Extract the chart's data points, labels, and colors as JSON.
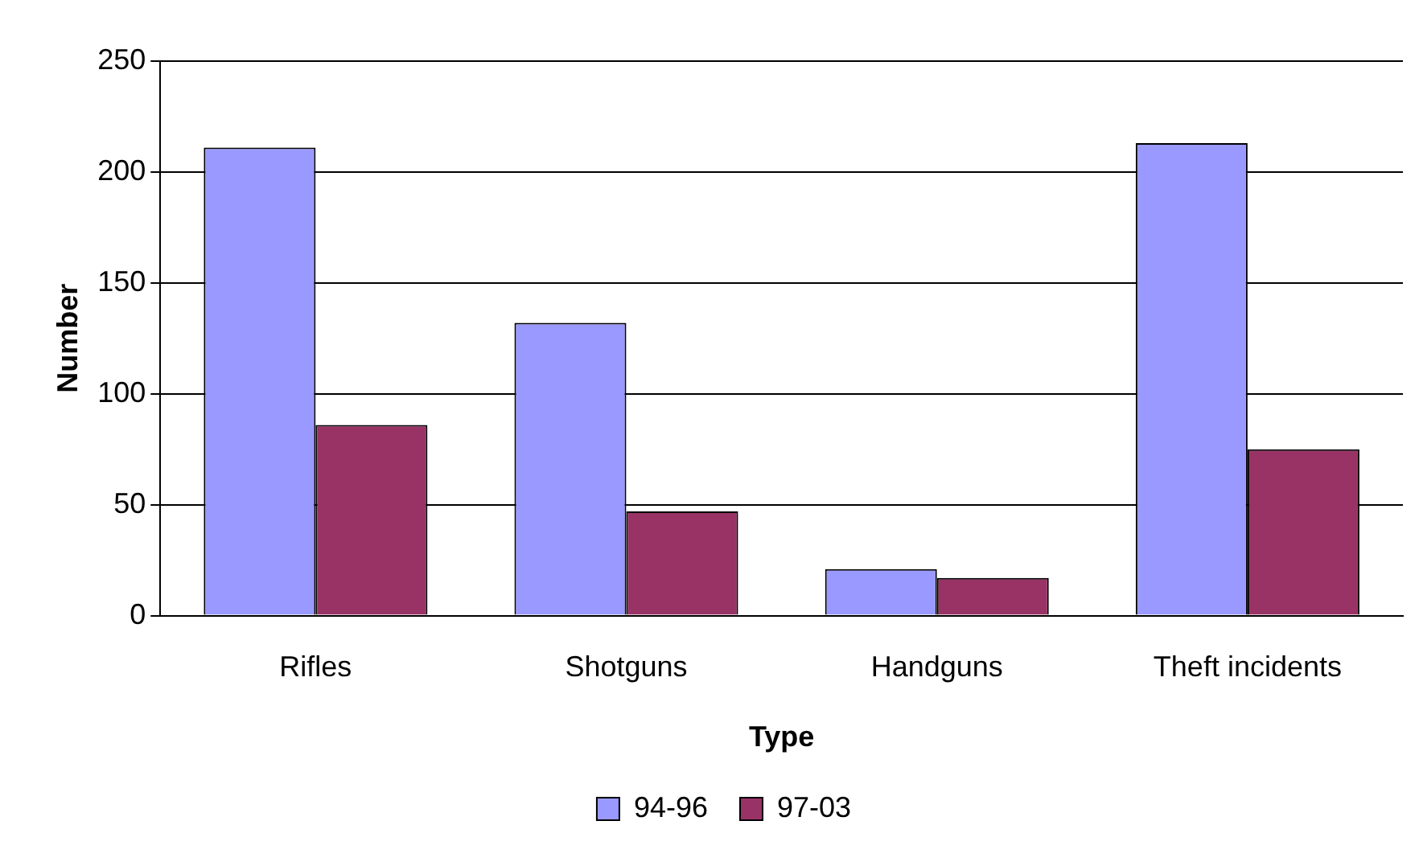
{
  "chart_data": {
    "type": "bar",
    "xlabel": "Type",
    "ylabel": "Number",
    "categories": [
      "Rifles",
      "Shotguns",
      "Handguns",
      "Theft incidents"
    ],
    "series": [
      {
        "name": "94-96",
        "color": "#9999ff",
        "values": [
          211,
          132,
          21,
          213
        ]
      },
      {
        "name": "97-03",
        "color": "#993366",
        "values": [
          86,
          47,
          17,
          75
        ]
      }
    ],
    "ylim": [
      0,
      250
    ],
    "yticks": [
      0,
      50,
      100,
      150,
      200,
      250
    ],
    "grid": "y",
    "legend": "bottom"
  }
}
